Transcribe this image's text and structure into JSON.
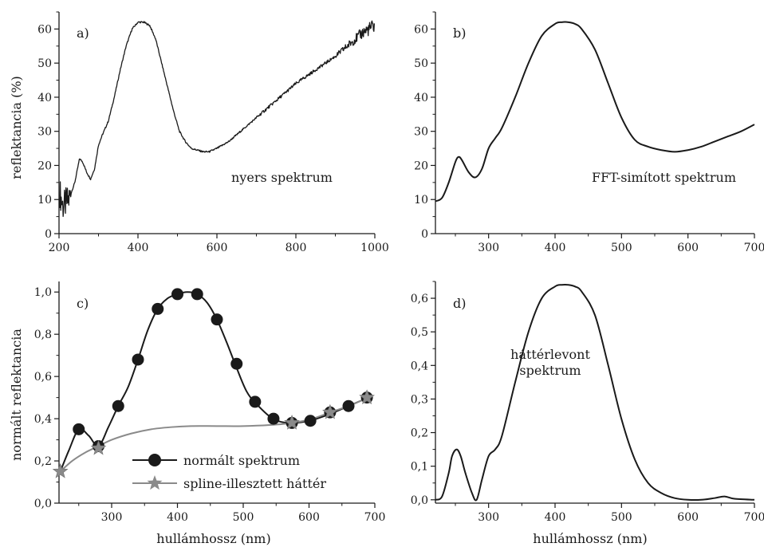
{
  "chart_data": [
    {
      "id": "a",
      "type": "line",
      "panel_label": "a)",
      "annotation": "nyers spektrum",
      "xlabel": "",
      "ylabel": "reflektancia (%)",
      "xlim": [
        200,
        1000
      ],
      "ylim": [
        0,
        65
      ],
      "xticks": [
        200,
        400,
        600,
        800,
        1000
      ],
      "yticks": [
        0,
        10,
        20,
        30,
        40,
        50,
        60
      ],
      "noise": "high",
      "series": [
        {
          "x": [
            202,
            210,
            225,
            240,
            252,
            260,
            270,
            280,
            290,
            300,
            310,
            325,
            340,
            355,
            370,
            385,
            400,
            415,
            430,
            445,
            460,
            475,
            490,
            505,
            520,
            535,
            550,
            565,
            580,
            600,
            630,
            660,
            700,
            750,
            800,
            850,
            900,
            940,
            970,
            1000
          ],
          "y": [
            12,
            8,
            10,
            15,
            22,
            21,
            18,
            16,
            19,
            26,
            29,
            33,
            40,
            48,
            55,
            60,
            62,
            62,
            61,
            57,
            50,
            43,
            36,
            30,
            27,
            25,
            24.5,
            24,
            24,
            25,
            27,
            30,
            34,
            39,
            44,
            48,
            52,
            56,
            59,
            61
          ]
        }
      ]
    },
    {
      "id": "b",
      "type": "line",
      "panel_label": "b)",
      "annotation": "FFT-simított spektrum",
      "xlabel": "",
      "ylabel": "",
      "xlim": [
        220,
        700
      ],
      "ylim": [
        0,
        65
      ],
      "xticks": [
        300,
        400,
        500,
        600,
        700
      ],
      "yticks": [
        0,
        10,
        20,
        30,
        40,
        50,
        60
      ],
      "series": [
        {
          "x": [
            220,
            230,
            240,
            250,
            255,
            260,
            270,
            280,
            290,
            300,
            310,
            320,
            340,
            360,
            380,
            400,
            410,
            420,
            430,
            440,
            460,
            480,
            500,
            520,
            540,
            560,
            580,
            600,
            620,
            640,
            660,
            680,
            700
          ],
          "y": [
            9.5,
            10.5,
            15,
            21,
            22.5,
            21.5,
            18,
            16.5,
            19,
            25,
            28,
            31,
            40,
            50,
            58,
            61.5,
            62,
            62,
            61.5,
            60,
            54,
            44,
            34,
            27.5,
            25.5,
            24.5,
            24,
            24.5,
            25.5,
            27,
            28.5,
            30,
            32
          ]
        }
      ]
    },
    {
      "id": "c",
      "type": "line",
      "panel_label": "c)",
      "xlabel": "hullámhossz (nm)",
      "ylabel": "normált reflektancia",
      "xlim": [
        220,
        700
      ],
      "ylim": [
        0,
        1.05
      ],
      "xticks": [
        300,
        400,
        500,
        600,
        700
      ],
      "yticks": [
        0,
        0.2,
        0.4,
        0.6,
        0.8,
        1.0
      ],
      "ytick_labels": [
        "0,0",
        "0,2",
        "0,4",
        "0,6",
        "0,8",
        "1,0"
      ],
      "legend": {
        "placement": "bottom-center",
        "entries": [
          "normált spektrum",
          "spline-illesztett háttér"
        ]
      },
      "series": [
        {
          "name": "normált spektrum",
          "color": "#1a1a1a",
          "marker": "circle",
          "x": [
            222,
            235,
            250,
            265,
            280,
            295,
            310,
            325,
            340,
            355,
            370,
            385,
            400,
            415,
            430,
            445,
            460,
            475,
            490,
            505,
            520,
            545,
            570,
            600,
            630,
            660,
            690
          ],
          "y": [
            0.15,
            0.25,
            0.35,
            0.32,
            0.27,
            0.36,
            0.46,
            0.55,
            0.68,
            0.82,
            0.92,
            0.97,
            0.99,
            1.0,
            0.99,
            0.95,
            0.87,
            0.76,
            0.64,
            0.53,
            0.47,
            0.4,
            0.38,
            0.39,
            0.42,
            0.46,
            0.5
          ],
          "marker_x": [
            250,
            280,
            310,
            340,
            370,
            400,
            430,
            460,
            490,
            518,
            546,
            574,
            602,
            632,
            660,
            688
          ],
          "marker_y": [
            0.35,
            0.27,
            0.46,
            0.68,
            0.92,
            0.99,
            0.99,
            0.87,
            0.66,
            0.48,
            0.4,
            0.38,
            0.39,
            0.43,
            0.46,
            0.5
          ]
        },
        {
          "name": "spline-illesztett háttér",
          "color": "#8a8a8a",
          "marker": "star",
          "x": [
            222,
            240,
            260,
            280,
            300,
            330,
            360,
            390,
            420,
            460,
            500,
            540,
            575,
            605,
            632,
            660,
            690
          ],
          "y": [
            0.15,
            0.2,
            0.24,
            0.27,
            0.3,
            0.33,
            0.35,
            0.36,
            0.365,
            0.365,
            0.365,
            0.37,
            0.38,
            0.4,
            0.43,
            0.46,
            0.5
          ],
          "marker_x": [
            222,
            280,
            574,
            632,
            688
          ],
          "marker_y": [
            0.15,
            0.26,
            0.38,
            0.43,
            0.5
          ]
        }
      ]
    },
    {
      "id": "d",
      "type": "line",
      "panel_label": "d)",
      "annotation": [
        "háttérlevont",
        "spektrum"
      ],
      "xlabel": "hullámhossz (nm)",
      "ylabel": "",
      "xlim": [
        220,
        700
      ],
      "ylim": [
        -0.01,
        0.65
      ],
      "xticks": [
        300,
        400,
        500,
        600,
        700
      ],
      "yticks": [
        0,
        0.1,
        0.2,
        0.3,
        0.4,
        0.5,
        0.6
      ],
      "ytick_labels": [
        "0,0",
        "0,1",
        "0,2",
        "0,3",
        "0,4",
        "0,5",
        "0,6"
      ],
      "series": [
        {
          "x": [
            220,
            230,
            240,
            245,
            252,
            258,
            265,
            275,
            282,
            290,
            300,
            310,
            320,
            340,
            360,
            380,
            400,
            410,
            420,
            430,
            440,
            460,
            480,
            500,
            520,
            540,
            560,
            580,
            600,
            620,
            640,
            655,
            670,
            700
          ],
          "y": [
            0.0,
            0.01,
            0.08,
            0.13,
            0.15,
            0.13,
            0.08,
            0.02,
            0.0,
            0.06,
            0.13,
            0.15,
            0.19,
            0.35,
            0.5,
            0.6,
            0.635,
            0.64,
            0.64,
            0.635,
            0.62,
            0.55,
            0.4,
            0.24,
            0.12,
            0.05,
            0.02,
            0.005,
            0.0,
            0.0,
            0.005,
            0.01,
            0.003,
            0.0
          ]
        }
      ]
    }
  ]
}
